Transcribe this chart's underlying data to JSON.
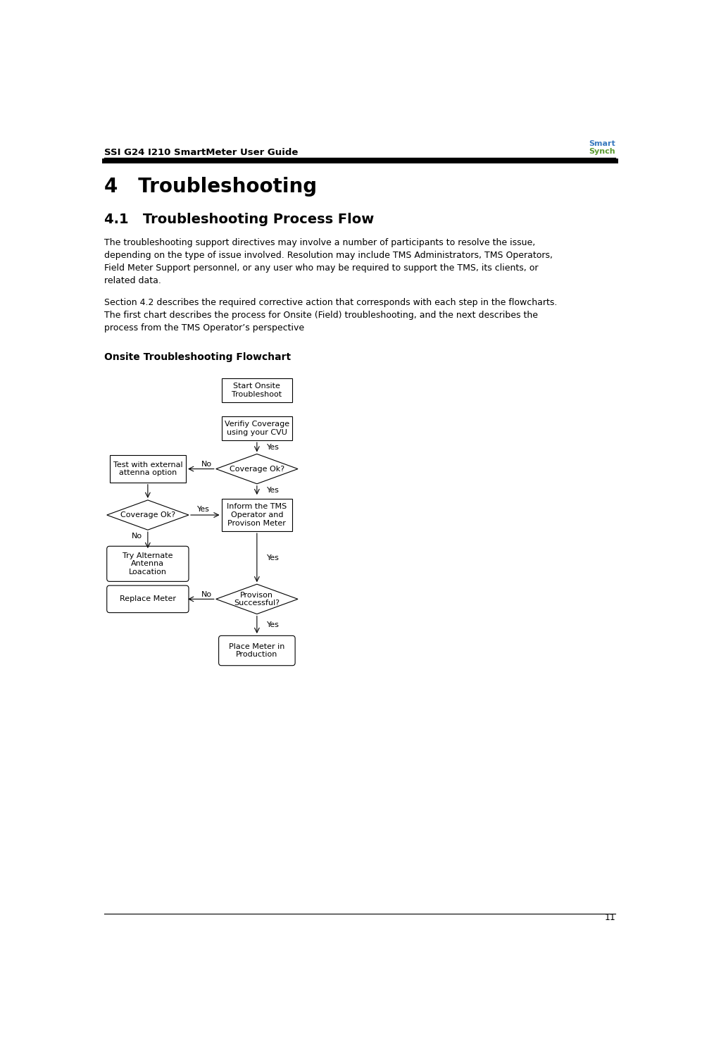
{
  "header_text": "SSI G24 I210 SmartMeter User Guide",
  "page_number": "11",
  "title_h1": "4   Troubleshooting",
  "title_h2": "4.1   Troubleshooting Process Flow",
  "body_text_1": "The troubleshooting support directives may involve a number of participants to resolve the issue,\ndepending on the type of issue involved. Resolution may include TMS Administrators, TMS Operators,\nField Meter Support personnel, or any user who may be required to support the TMS, its clients, or\nrelated data.",
  "body_text_2": "Section 4.2 describes the required corrective action that corresponds with each step in the flowcharts.\nThe first chart describes the process for Onsite (Field) troubleshooting, and the next describes the\nprocess from the TMS Operator’s perspective",
  "subheader": "Onsite Troubleshooting Flowchart",
  "bg_color": "#ffffff",
  "text_color": "#000000"
}
